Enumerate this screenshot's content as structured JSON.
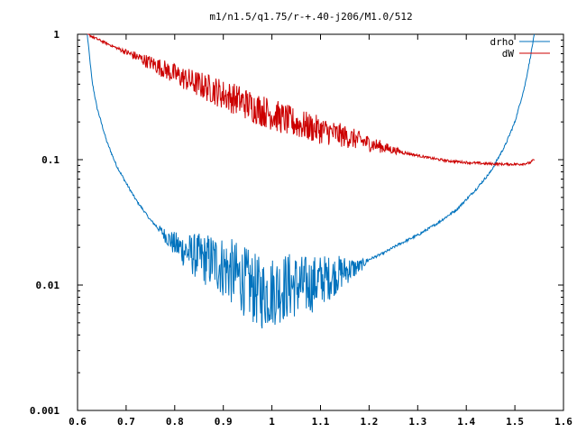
{
  "chart_data": {
    "type": "line",
    "title": "m1/n1.5/q1.75/r-+.40-j206/M1.0/512",
    "xlabel": "",
    "ylabel": "",
    "xlim": [
      0.6,
      1.6
    ],
    "ylim": [
      0.001,
      1
    ],
    "yscale": "log",
    "grid": false,
    "legend_position": "top-right",
    "x_ticks": [
      0.6,
      0.7,
      0.8,
      0.9,
      1.0,
      1.1,
      1.2,
      1.3,
      1.4,
      1.5,
      1.6
    ],
    "x_tick_labels": [
      "0.6",
      "0.7",
      "0.8",
      "0.9",
      "1",
      "1.1",
      "1.2",
      "1.3",
      "1.4",
      "1.5",
      "1.6"
    ],
    "y_ticks": [
      0.001,
      0.01,
      0.1,
      1
    ],
    "y_tick_labels": [
      "0.001",
      "0.01",
      "0.1",
      "1"
    ],
    "series": [
      {
        "name": "drho",
        "color": "#0072bd",
        "x": [
          0.62,
          0.63,
          0.64,
          0.66,
          0.68,
          0.7,
          0.72,
          0.75,
          0.78,
          0.8,
          0.83,
          0.86,
          0.88,
          0.9,
          0.92,
          0.94,
          0.96,
          0.98,
          1.0,
          1.02,
          1.04,
          1.06,
          1.08,
          1.1,
          1.12,
          1.15,
          1.18,
          1.2,
          1.23,
          1.26,
          1.3,
          1.34,
          1.38,
          1.42,
          1.45,
          1.48,
          1.5,
          1.52,
          1.53,
          1.54
        ],
        "y": [
          1.0,
          0.42,
          0.26,
          0.14,
          0.09,
          0.065,
          0.048,
          0.033,
          0.025,
          0.021,
          0.018,
          0.016,
          0.0155,
          0.014,
          0.0125,
          0.011,
          0.0095,
          0.0085,
          0.009,
          0.0095,
          0.01,
          0.0098,
          0.01,
          0.011,
          0.0115,
          0.013,
          0.014,
          0.016,
          0.018,
          0.021,
          0.025,
          0.031,
          0.04,
          0.058,
          0.08,
          0.13,
          0.2,
          0.38,
          0.6,
          1.0
        ]
      },
      {
        "name": "dW",
        "color": "#cc0000",
        "x": [
          0.62,
          0.65,
          0.68,
          0.7,
          0.73,
          0.76,
          0.8,
          0.84,
          0.88,
          0.9,
          0.93,
          0.96,
          1.0,
          1.04,
          1.08,
          1.12,
          1.16,
          1.2,
          1.24,
          1.28,
          1.32,
          1.36,
          1.4,
          1.44,
          1.48,
          1.51,
          1.53,
          1.54
        ],
        "y": [
          1.0,
          0.88,
          0.78,
          0.72,
          0.64,
          0.57,
          0.48,
          0.41,
          0.36,
          0.33,
          0.3,
          0.265,
          0.23,
          0.2,
          0.18,
          0.165,
          0.15,
          0.135,
          0.122,
          0.112,
          0.104,
          0.098,
          0.095,
          0.093,
          0.092,
          0.092,
          0.094,
          0.1
        ]
      }
    ]
  }
}
